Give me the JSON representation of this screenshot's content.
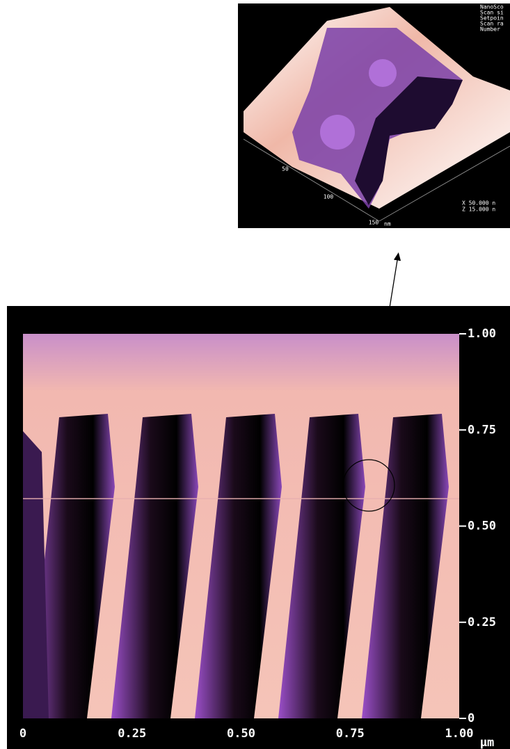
{
  "afm_image": {
    "x_ticks": [
      "0",
      "0.25",
      "0.50",
      "0.75",
      "1.00"
    ],
    "y_ticks": [
      "0",
      "0.25",
      "0.50",
      "0.75",
      "1.00"
    ],
    "unit": "µm"
  },
  "inset": {
    "header_lines": [
      "NanoSco",
      "Scan si",
      "Setpoin",
      "Scan ra",
      "Number"
    ],
    "axis_labels": [
      "50",
      "100",
      "150"
    ],
    "axis_unit": "nm",
    "scale_lines": [
      "X  50.000 n",
      "Z  15.000 n"
    ]
  }
}
